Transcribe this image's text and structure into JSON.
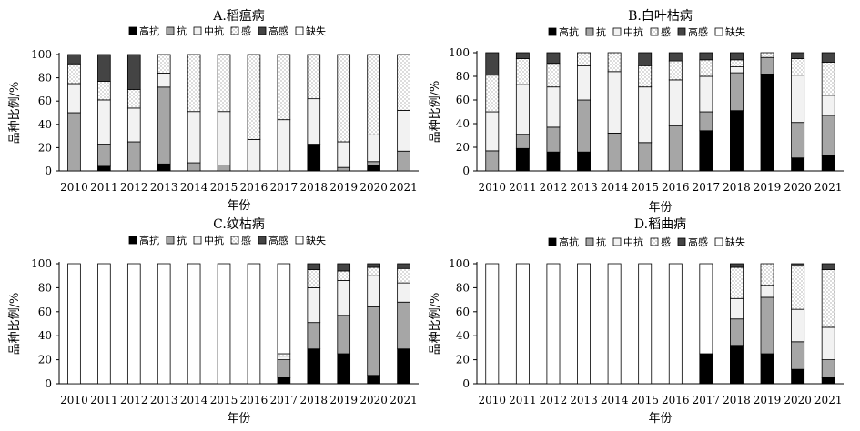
{
  "chart_data": [
    {
      "type": "bar",
      "stacked": true,
      "title": "A.稻瘟病",
      "xlabel": "年份",
      "ylabel": "品种比例/%",
      "ylim": [
        0,
        100
      ],
      "yticks": [
        "0",
        "20",
        "40",
        "60",
        "80",
        "100"
      ],
      "categories": [
        "2010",
        "2011",
        "2012",
        "2013",
        "2014",
        "2015",
        "2016",
        "2017",
        "2018",
        "2019",
        "2020",
        "2021"
      ],
      "legend": [
        "高抗",
        "抗",
        "中抗",
        "感",
        "高感",
        "缺失"
      ],
      "series": [
        {
          "name": "高抗",
          "values": [
            0,
            4,
            0,
            6,
            0,
            0,
            0,
            0,
            23,
            0,
            5,
            0
          ]
        },
        {
          "name": "抗",
          "values": [
            50,
            19,
            25,
            66,
            7,
            5,
            0,
            0,
            0,
            3,
            3,
            17
          ]
        },
        {
          "name": "中抗",
          "values": [
            25,
            38,
            29,
            12,
            44,
            46,
            27,
            44,
            39,
            22,
            23,
            35
          ]
        },
        {
          "name": "感",
          "values": [
            17,
            16,
            16,
            16,
            49,
            49,
            73,
            56,
            38,
            75,
            69,
            48
          ]
        },
        {
          "name": "高感",
          "values": [
            8,
            23,
            30,
            0,
            0,
            0,
            0,
            0,
            0,
            0,
            0,
            0
          ]
        },
        {
          "name": "缺失",
          "values": [
            0,
            0,
            0,
            0,
            0,
            0,
            0,
            0,
            0,
            0,
            0,
            0
          ]
        }
      ]
    },
    {
      "type": "bar",
      "stacked": true,
      "title": "B.白叶枯病",
      "xlabel": "年份",
      "ylabel": "品种比例/%",
      "ylim": [
        0,
        100
      ],
      "yticks": [
        "0",
        "20",
        "40",
        "60",
        "80",
        "100"
      ],
      "categories": [
        "2010",
        "2011",
        "2012",
        "2013",
        "2014",
        "2015",
        "2016",
        "2017",
        "2018",
        "2019",
        "2020",
        "2021"
      ],
      "legend": [
        "高抗",
        "抗",
        "中抗",
        "感",
        "高感",
        "缺失"
      ],
      "series": [
        {
          "name": "高抗",
          "values": [
            0,
            19,
            16,
            16,
            0,
            0,
            0,
            34,
            51,
            82,
            11,
            13
          ]
        },
        {
          "name": "抗",
          "values": [
            17,
            12,
            21,
            44,
            32,
            24,
            38,
            16,
            32,
            14,
            30,
            34
          ]
        },
        {
          "name": "中抗",
          "values": [
            33,
            42,
            34,
            29,
            52,
            47,
            39,
            30,
            5,
            0,
            40,
            17
          ]
        },
        {
          "name": "感",
          "values": [
            31,
            22,
            20,
            11,
            16,
            18,
            16,
            14,
            6,
            4,
            14,
            28
          ]
        },
        {
          "name": "高感",
          "values": [
            19,
            5,
            9,
            0,
            0,
            11,
            7,
            6,
            6,
            0,
            5,
            8
          ]
        },
        {
          "name": "缺失",
          "values": [
            0,
            0,
            0,
            0,
            0,
            0,
            0,
            0,
            0,
            0,
            0,
            0
          ]
        }
      ]
    },
    {
      "type": "bar",
      "stacked": true,
      "title": "C.纹枯病",
      "xlabel": "年份",
      "ylabel": "品种比例/%",
      "ylim": [
        0,
        100
      ],
      "yticks": [
        "0",
        "20",
        "40",
        "60",
        "80",
        "100"
      ],
      "categories": [
        "2010",
        "2011",
        "2012",
        "2013",
        "2014",
        "2015",
        "2016",
        "2017",
        "2018",
        "2019",
        "2020",
        "2021"
      ],
      "legend": [
        "高抗",
        "抗",
        "中抗",
        "感",
        "高感",
        "缺失"
      ],
      "series": [
        {
          "name": "高抗",
          "values": [
            0,
            0,
            0,
            0,
            0,
            0,
            0,
            5,
            29,
            25,
            7,
            29
          ]
        },
        {
          "name": "抗",
          "values": [
            0,
            0,
            0,
            0,
            0,
            0,
            0,
            15,
            22,
            32,
            57,
            39
          ]
        },
        {
          "name": "中抗",
          "values": [
            0,
            0,
            0,
            0,
            0,
            0,
            0,
            3,
            29,
            29,
            26,
            16
          ]
        },
        {
          "name": "感",
          "values": [
            0,
            0,
            0,
            0,
            0,
            0,
            0,
            2,
            15,
            8,
            7,
            12
          ]
        },
        {
          "name": "高感",
          "values": [
            0,
            0,
            0,
            0,
            0,
            0,
            0,
            0,
            5,
            6,
            3,
            4
          ]
        },
        {
          "name": "缺失",
          "values": [
            100,
            100,
            100,
            100,
            100,
            100,
            100,
            75,
            0,
            0,
            0,
            0
          ]
        }
      ]
    },
    {
      "type": "bar",
      "stacked": true,
      "title": "D.稻曲病",
      "xlabel": "年份",
      "ylabel": "品种比例/%",
      "ylim": [
        0,
        100
      ],
      "yticks": [
        "0",
        "20",
        "40",
        "60",
        "80",
        "100"
      ],
      "categories": [
        "2010",
        "2011",
        "2012",
        "2013",
        "2014",
        "2015",
        "2016",
        "2017",
        "2018",
        "2019",
        "2020",
        "2021"
      ],
      "legend": [
        "高抗",
        "抗",
        "中抗",
        "感",
        "高感",
        "缺失"
      ],
      "series": [
        {
          "name": "高抗",
          "values": [
            0,
            0,
            0,
            0,
            0,
            0,
            0,
            25,
            32,
            25,
            12,
            5
          ]
        },
        {
          "name": "抗",
          "values": [
            0,
            0,
            0,
            0,
            0,
            0,
            0,
            0,
            22,
            47,
            23,
            15
          ]
        },
        {
          "name": "中抗",
          "values": [
            0,
            0,
            0,
            0,
            0,
            0,
            0,
            0,
            17,
            10,
            27,
            27
          ]
        },
        {
          "name": "感",
          "values": [
            0,
            0,
            0,
            0,
            0,
            0,
            0,
            0,
            26,
            18,
            36,
            48
          ]
        },
        {
          "name": "高感",
          "values": [
            0,
            0,
            0,
            0,
            0,
            0,
            0,
            0,
            3,
            0,
            2,
            5
          ]
        },
        {
          "name": "缺失",
          "values": [
            100,
            100,
            100,
            100,
            100,
            100,
            100,
            75,
            0,
            0,
            0,
            0
          ]
        }
      ]
    }
  ],
  "styles": {
    "高抗": {
      "fill": "#000000",
      "pattern": "solid"
    },
    "抗": {
      "fill": "#a6a6a6",
      "pattern": "solid"
    },
    "中抗": {
      "fill": "#f2f2f2",
      "pattern": "solid"
    },
    "感": {
      "fill": "#ffffff",
      "pattern": "dots"
    },
    "高感": {
      "fill": "#444444",
      "pattern": "solid"
    },
    "缺失": {
      "fill": "#ffffff",
      "pattern": "solid"
    }
  }
}
